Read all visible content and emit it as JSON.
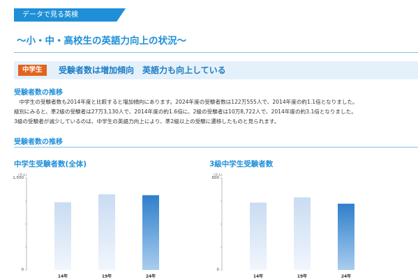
{
  "header": {
    "tag": "データで見る英検"
  },
  "page_title": "〜小・中・高校生の英語力向上の状況〜",
  "section": {
    "label": "中学生",
    "heading": "受験者数は増加傾向　英語力も向上している"
  },
  "subsection1": {
    "title": "受験者数の推移",
    "paragraph": [
      "　中学生の受験者数も2014年度と比較すると増加傾向にあります。2024年度の受験者数は122万555人で、2014年度の約1.1倍となりました。",
      "級別にみると、準2級の受験者は27万3,130人で、2014年度の約1.6倍に、2級の受験者は10万8,722人で、2014年度の約3.1倍となりました。",
      "3級の受験者が減少しているのは、中学生の英語力向上により、準2級以上の受験に遷移したものと見られます。"
    ]
  },
  "subsection2": {
    "title": "受験者数の推移"
  },
  "chart_data": [
    {
      "type": "bar",
      "title": "中学生受験者数(全体)",
      "unit": "(千人)",
      "categories": [
        "14年",
        "19年",
        "24年"
      ],
      "values": [
        1105,
        1235,
        1221
      ],
      "ylim": [
        0,
        1500
      ],
      "yticks": [
        "1,500",
        "0"
      ],
      "colors": [
        "light",
        "light",
        "dark"
      ]
    },
    {
      "type": "bar",
      "title": "3級中学生受験者数",
      "unit": "(千人)",
      "categories": [
        "14年",
        "19年",
        "24年"
      ],
      "values": [
        440,
        474,
        433
      ],
      "ylim": [
        0,
        600
      ],
      "yticks": [
        "600",
        "0"
      ],
      "colors": [
        "light",
        "light",
        "dark"
      ]
    }
  ]
}
